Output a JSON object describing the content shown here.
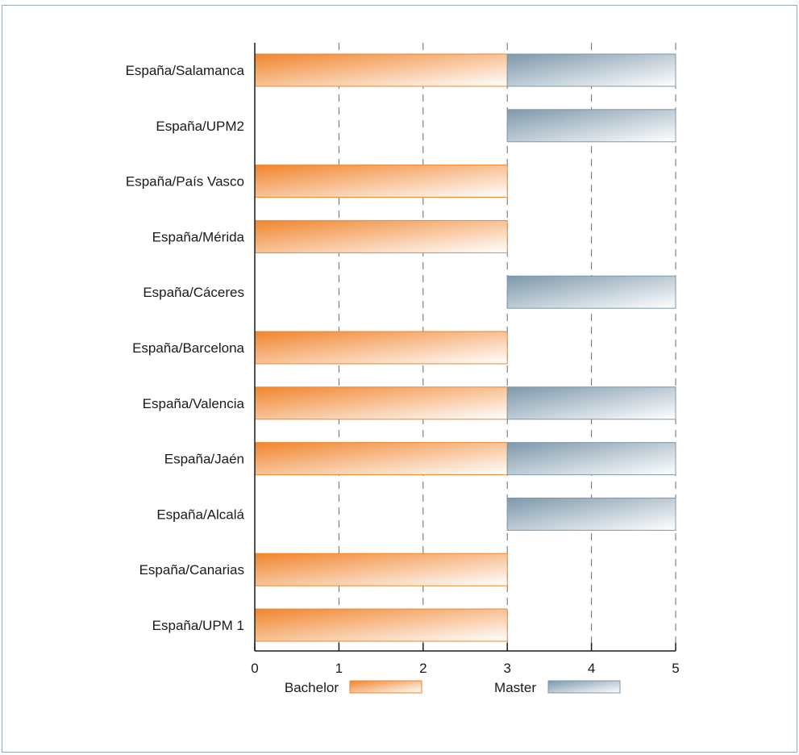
{
  "chart_data": {
    "type": "bar",
    "orientation": "horizontal",
    "stacked": true,
    "title": "",
    "xlabel": "",
    "ylabel": "",
    "xlim": [
      0,
      5
    ],
    "xticks": [
      0,
      1,
      2,
      3,
      4,
      5
    ],
    "grid": "vertical dashed",
    "legend_position": "bottom",
    "categories": [
      "España/Salamanca",
      "España/UPM2",
      "España/País Vasco",
      "España/Mérida",
      "España/Cáceres",
      "España/Barcelona",
      "España/Valencia",
      "España/Jaén",
      "España/Alcalá",
      "España/Canarias",
      "España/UPM 1"
    ],
    "series": [
      {
        "name": "Bachelor",
        "color": "#f0852d",
        "values": [
          3,
          0,
          3,
          3,
          0,
          3,
          3,
          3,
          0,
          3,
          3
        ]
      },
      {
        "name": "Master",
        "color": "#7d98ab",
        "values": [
          2,
          2,
          0,
          0,
          2,
          0,
          2,
          2,
          2,
          0,
          0
        ]
      }
    ],
    "offsets": [
      0,
      3,
      0,
      0,
      3,
      0,
      0,
      0,
      3,
      0,
      0
    ]
  }
}
